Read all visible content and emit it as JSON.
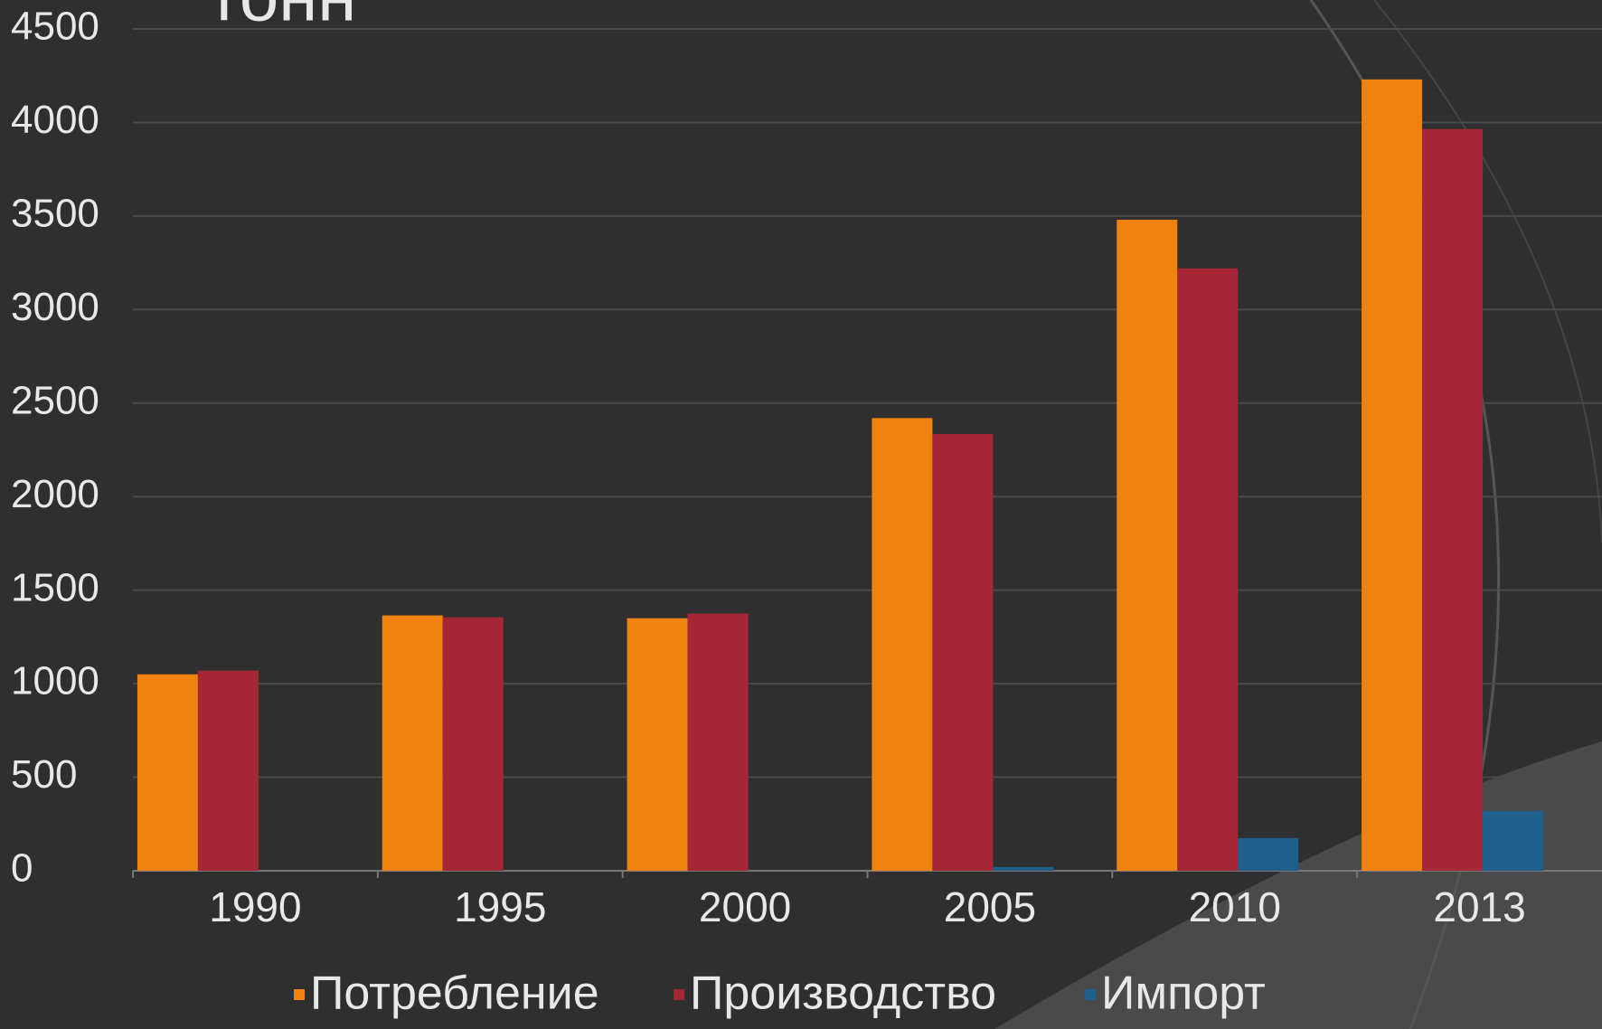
{
  "chart_data": {
    "type": "bar",
    "title": "тонн",
    "categories": [
      "1990",
      "1995",
      "2000",
      "2005",
      "2010",
      "2013"
    ],
    "series": [
      {
        "name": "Потребление",
        "color": "#f0820f",
        "values": [
          1050,
          1365,
          1350,
          2420,
          3480,
          4230
        ]
      },
      {
        "name": "Производство",
        "color": "#a52735",
        "values": [
          1070,
          1355,
          1375,
          2335,
          3220,
          3965
        ]
      },
      {
        "name": "Импорт",
        "color": "#1f5f8b",
        "values": [
          0,
          0,
          0,
          20,
          175,
          320
        ]
      }
    ],
    "ylim": [
      0,
      4500
    ],
    "yticks": [
      0,
      500,
      1000,
      1500,
      2000,
      2500,
      3000,
      3500,
      4000,
      4500
    ],
    "grid": true,
    "legend": "bottom"
  }
}
